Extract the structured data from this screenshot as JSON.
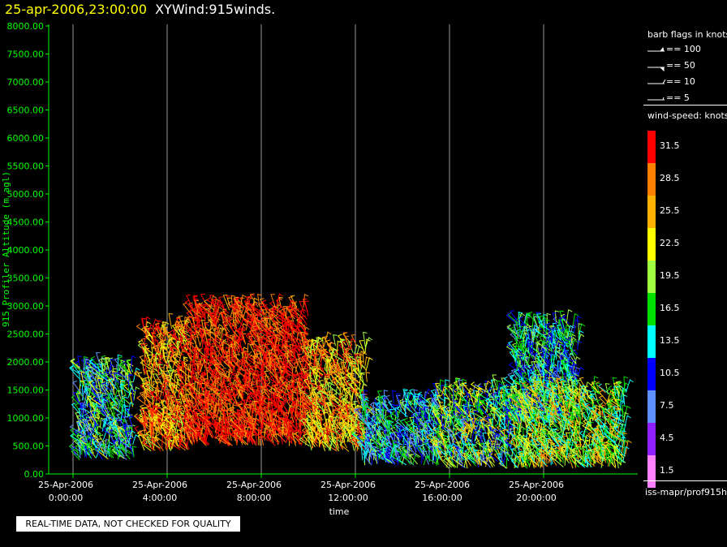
{
  "header": {
    "timestamp": "25-apr-2006,23:00:00",
    "plot_name": "XYWind:915winds."
  },
  "legend": {
    "barb_title": "barb flags in knots",
    "barb_items": [
      "== 100",
      "== 50",
      "== 10",
      "== 5"
    ],
    "speed_title": "wind-speed: knots",
    "colorbar": [
      {
        "label": "31.5",
        "color": "#ff0000"
      },
      {
        "label": "28.5",
        "color": "#ff7f00"
      },
      {
        "label": "25.5",
        "color": "#ffb000"
      },
      {
        "label": "22.5",
        "color": "#ffff00"
      },
      {
        "label": "19.5",
        "color": "#a0ff40"
      },
      {
        "label": "16.5",
        "color": "#00e000"
      },
      {
        "label": "13.5",
        "color": "#00ffff"
      },
      {
        "label": "10.5",
        "color": "#0000ff"
      },
      {
        "label": "7.5",
        "color": "#6090ff"
      },
      {
        "label": "4.5",
        "color": "#9020ff"
      },
      {
        "label": "1.5",
        "color": "#ff80ff"
      }
    ],
    "source": "iss-mapr/prof915h"
  },
  "footer": {
    "quality_note": "REAL-TIME DATA, NOT CHECKED FOR QUALITY"
  },
  "chart_data": {
    "type": "scatter",
    "xlabel": "time",
    "ylabel": "915 Profiler Altitude (m agl)",
    "ylim": [
      0,
      8000
    ],
    "xlim_hours": [
      0,
      23.5
    ],
    "yticks": [
      "0.00",
      "500.00",
      "1000.00",
      "1500.00",
      "2000.00",
      "2500.00",
      "3000.00",
      "3500.00",
      "4000.00",
      "4500.00",
      "5000.00",
      "5500.00",
      "6000.00",
      "6500.00",
      "7000.00",
      "7500.00",
      "8000.00"
    ],
    "xticks": [
      {
        "hour": 0,
        "date": "25-Apr-2006",
        "time": "0:00:00"
      },
      {
        "hour": 4,
        "date": "25-Apr-2006",
        "time": "4:00:00"
      },
      {
        "hour": 8,
        "date": "25-Apr-2006",
        "time": "8:00:00"
      },
      {
        "hour": 12,
        "date": "25-Apr-2006",
        "time": "12:00:00"
      },
      {
        "hour": 16,
        "date": "25-Apr-2006",
        "time": "16:00:00"
      },
      {
        "hour": 20,
        "date": "25-Apr-2006",
        "time": "20:00:00"
      }
    ],
    "grid_vertical": true,
    "wind_regions": [
      {
        "t_start": 0.2,
        "t_end": 2.6,
        "alt_min": 250,
        "alt_max": 1900,
        "speed_knots": [
          6,
          22
        ]
      },
      {
        "t_start": 3.0,
        "t_end": 5.0,
        "alt_min": 400,
        "alt_max": 2600,
        "speed_knots": [
          20,
          34
        ]
      },
      {
        "t_start": 5.0,
        "t_end": 10.0,
        "alt_min": 500,
        "alt_max": 3000,
        "speed_knots": [
          26,
          35
        ]
      },
      {
        "t_start": 10.0,
        "t_end": 12.5,
        "alt_min": 400,
        "alt_max": 2300,
        "speed_knots": [
          18,
          32
        ]
      },
      {
        "t_start": 12.3,
        "t_end": 15.5,
        "alt_min": 150,
        "alt_max": 1300,
        "speed_knots": [
          6,
          20
        ]
      },
      {
        "t_start": 15.5,
        "t_end": 19.0,
        "alt_min": 100,
        "alt_max": 1500,
        "speed_knots": [
          8,
          26
        ]
      },
      {
        "t_start": 18.8,
        "t_end": 21.5,
        "alt_min": 900,
        "alt_max": 2700,
        "speed_knots": [
          8,
          20
        ]
      },
      {
        "t_start": 19.0,
        "t_end": 23.5,
        "alt_min": 100,
        "alt_max": 1500,
        "speed_knots": [
          12,
          28
        ]
      }
    ]
  }
}
